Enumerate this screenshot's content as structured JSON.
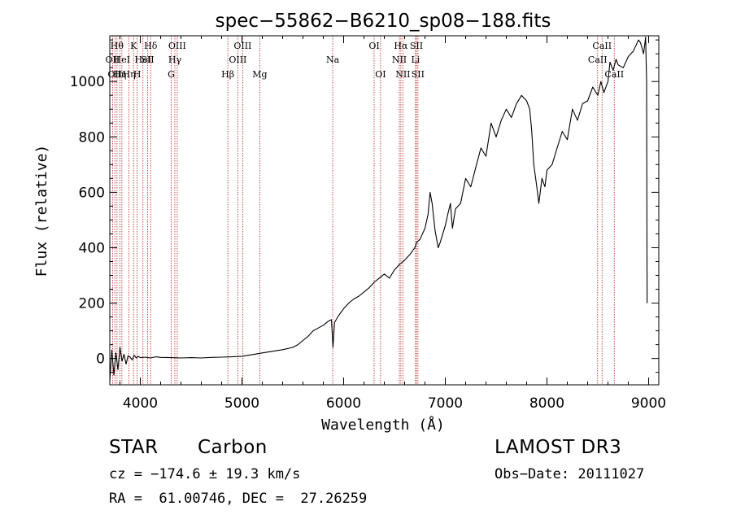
{
  "chart_data": {
    "type": "line",
    "title": "spec−55862−B6210_sp08−188.fits",
    "xlabel": "Wavelength (Å)",
    "ylabel": "Flux (relative)",
    "xlim": [
      3700,
      9100
    ],
    "ylim": [
      -95,
      1165
    ],
    "xticks": [
      4000,
      5000,
      6000,
      7000,
      8000,
      9000
    ],
    "yticks": [
      0,
      200,
      400,
      600,
      800,
      1000
    ],
    "series": [
      {
        "name": "flux",
        "x": [
          3700,
          3720,
          3740,
          3760,
          3780,
          3800,
          3820,
          3840,
          3860,
          3880,
          3900,
          3920,
          3940,
          3960,
          3980,
          4000,
          4050,
          4100,
          4150,
          4200,
          4300,
          4400,
          4500,
          4600,
          4700,
          4800,
          4900,
          5000,
          5100,
          5200,
          5300,
          5400,
          5500,
          5550,
          5600,
          5650,
          5700,
          5750,
          5800,
          5850,
          5880,
          5895,
          5910,
          5950,
          6000,
          6050,
          6100,
          6150,
          6200,
          6250,
          6300,
          6350,
          6400,
          6450,
          6500,
          6550,
          6600,
          6650,
          6700,
          6720,
          6750,
          6800,
          6830,
          6850,
          6870,
          6900,
          6930,
          6950,
          7000,
          7030,
          7050,
          7070,
          7100,
          7150,
          7200,
          7250,
          7300,
          7350,
          7400,
          7450,
          7500,
          7550,
          7600,
          7650,
          7700,
          7750,
          7800,
          7830,
          7850,
          7870,
          7900,
          7920,
          7950,
          7980,
          8000,
          8050,
          8100,
          8150,
          8200,
          8250,
          8300,
          8350,
          8400,
          8450,
          8500,
          8530,
          8560,
          8600,
          8620,
          8650,
          8680,
          8700,
          8750,
          8800,
          8850,
          8900,
          8920,
          8950,
          8970,
          8980,
          8985
        ],
        "values": [
          -80,
          30,
          -60,
          20,
          -40,
          40,
          -10,
          15,
          -20,
          10,
          5,
          -5,
          12,
          2,
          8,
          3,
          5,
          2,
          6,
          4,
          3,
          2,
          3,
          2,
          4,
          5,
          6,
          8,
          14,
          20,
          26,
          32,
          40,
          50,
          65,
          80,
          100,
          110,
          120,
          135,
          140,
          40,
          130,
          155,
          180,
          200,
          215,
          225,
          240,
          255,
          275,
          290,
          305,
          290,
          320,
          340,
          355,
          375,
          400,
          420,
          430,
          470,
          520,
          600,
          560,
          460,
          400,
          420,
          480,
          530,
          560,
          470,
          540,
          560,
          650,
          620,
          690,
          760,
          730,
          850,
          800,
          860,
          900,
          870,
          920,
          950,
          930,
          900,
          820,
          700,
          620,
          560,
          650,
          620,
          680,
          700,
          760,
          820,
          790,
          900,
          860,
          920,
          930,
          980,
          950,
          1000,
          960,
          1000,
          1070,
          1040,
          1080,
          1060,
          1050,
          1090,
          1110,
          1150,
          1140,
          1100,
          1160,
          1000,
          200
        ]
      }
    ],
    "lines": [
      {
        "x": 3727,
        "label": "OII",
        "row": 1
      },
      {
        "x": 3750,
        "label": "OII",
        "row": 2
      },
      {
        "x": 3771,
        "label": "Hθ",
        "row": 0
      },
      {
        "x": 3798,
        "label": "Hη",
        "row": 2
      },
      {
        "x": 3819,
        "label": "HeI",
        "row": 1
      },
      {
        "x": 3889,
        "label": "Hη",
        "row": 2
      },
      {
        "x": 3934,
        "label": "K",
        "row": 0
      },
      {
        "x": 3969,
        "label": "H",
        "row": 2
      },
      {
        "x": 4026,
        "label": "HeI",
        "row": 1
      },
      {
        "x": 4072,
        "label": "SII",
        "row": 1
      },
      {
        "x": 4102,
        "label": "Hδ",
        "row": 0
      },
      {
        "x": 4304,
        "label": "G",
        "row": 2
      },
      {
        "x": 4340,
        "label": "Hγ",
        "row": 1
      },
      {
        "x": 4363,
        "label": "OIII",
        "row": 0
      },
      {
        "x": 4861,
        "label": "Hβ",
        "row": 2
      },
      {
        "x": 4959,
        "label": "OIII",
        "row": 1
      },
      {
        "x": 5007,
        "label": "OIII",
        "row": 0
      },
      {
        "x": 5175,
        "label": "Mg",
        "row": 2
      },
      {
        "x": 5893,
        "label": "Na",
        "row": 1
      },
      {
        "x": 6300,
        "label": "OI",
        "row": 0
      },
      {
        "x": 6363,
        "label": "OI",
        "row": 2
      },
      {
        "x": 6548,
        "label": "NII",
        "row": 1
      },
      {
        "x": 6563,
        "label": "Hα",
        "row": 0
      },
      {
        "x": 6583,
        "label": "NII",
        "row": 2
      },
      {
        "x": 6707,
        "label": "Li",
        "row": 1
      },
      {
        "x": 6716,
        "label": "SII",
        "row": 0
      },
      {
        "x": 6731,
        "label": "SII",
        "row": 2
      },
      {
        "x": 8498,
        "label": "CaII",
        "row": 1
      },
      {
        "x": 8542,
        "label": "CaII",
        "row": 0
      },
      {
        "x": 8662,
        "label": "CaII",
        "row": 2
      }
    ]
  },
  "info": {
    "class_label": "STAR",
    "subclass_label": "Carbon",
    "survey": "LAMOST DR3",
    "cz": "cz = −174.6 ± 19.3 km/s",
    "obs_date": "Obs−Date: 20111027",
    "coords": "RA =  61.00746, DEC =  27.26259"
  }
}
